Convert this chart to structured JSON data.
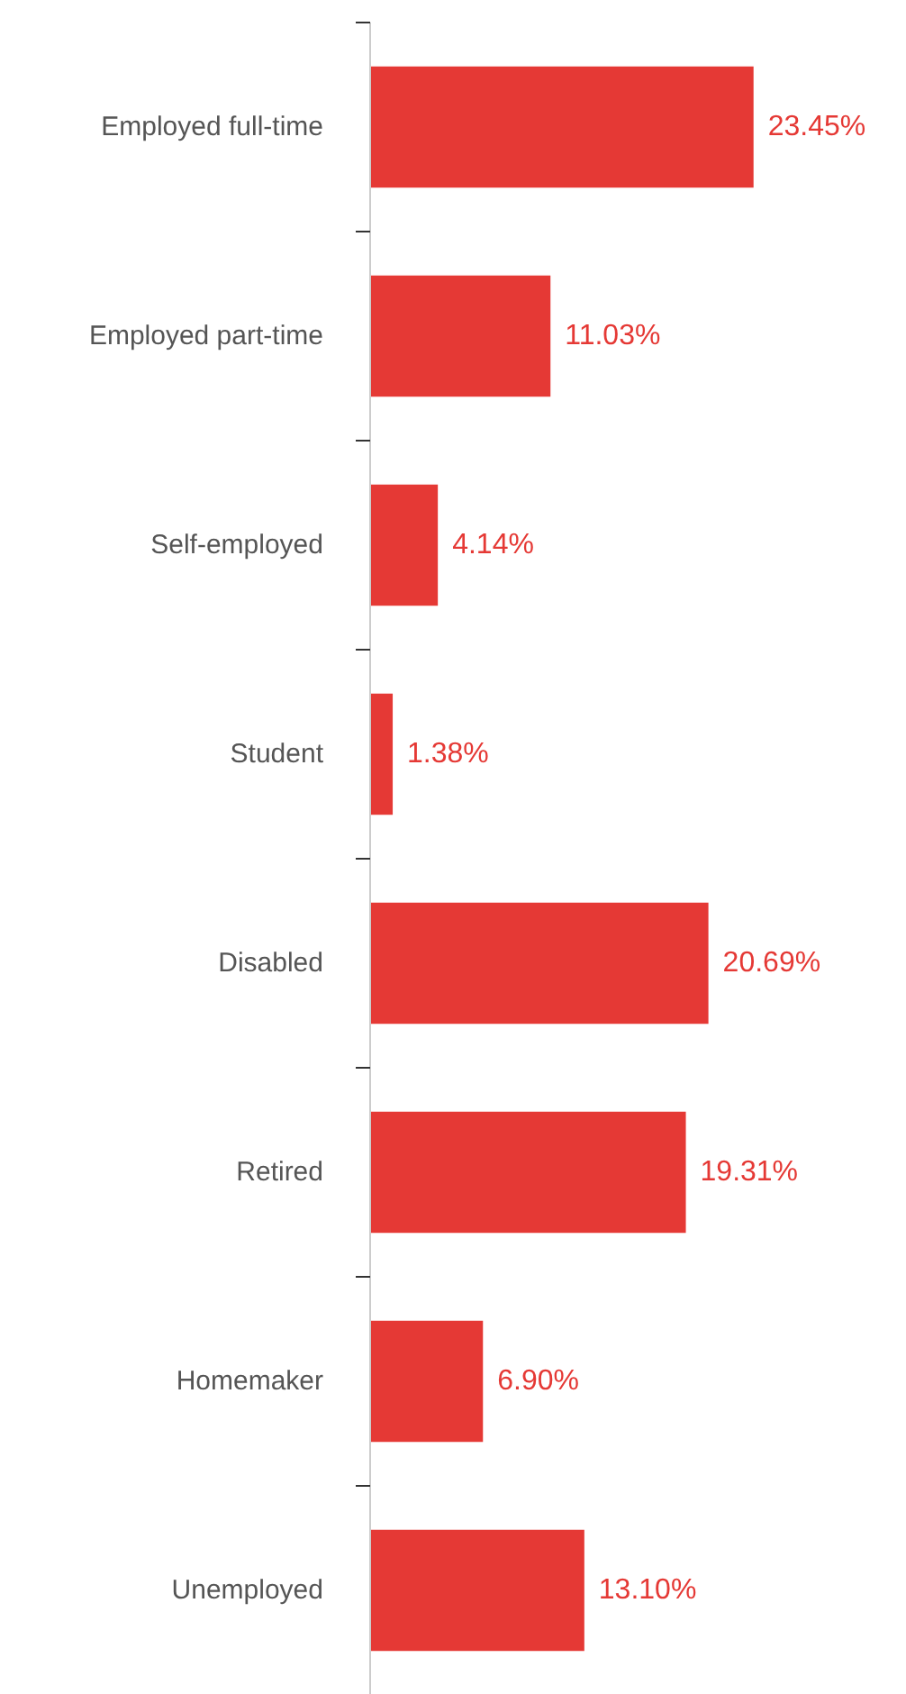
{
  "chart_data": {
    "type": "bar",
    "orientation": "horizontal",
    "categories": [
      "Employed full-time",
      "Employed part-time",
      "Self-employed",
      "Student",
      "Disabled",
      "Retired",
      "Homemaker",
      "Unemployed"
    ],
    "values": [
      23.45,
      11.03,
      4.14,
      1.38,
      20.69,
      19.31,
      6.9,
      13.1
    ],
    "value_labels": [
      "23.45%",
      "11.03%",
      "4.14%",
      "1.38%",
      "20.69%",
      "19.31%",
      "6.90%",
      "13.10%"
    ],
    "color": "#e53935",
    "grid": false
  }
}
